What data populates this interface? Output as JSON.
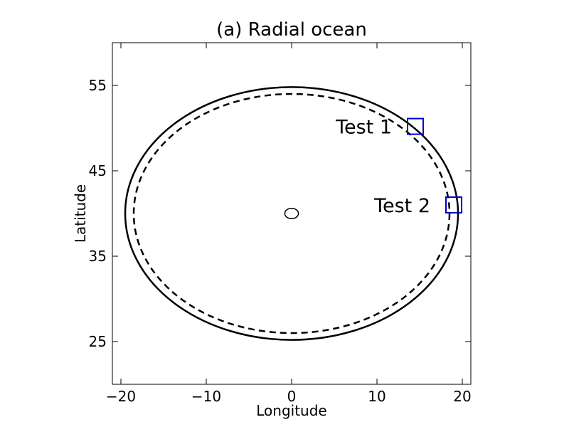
{
  "chart_data": {
    "type": "line",
    "title": "(a) Radial ocean",
    "xlabel": "Longitude",
    "ylabel": "Latitude",
    "xlim": [
      -21,
      21
    ],
    "ylim": [
      20,
      60
    ],
    "xticks": [
      -20,
      -10,
      0,
      10,
      20
    ],
    "xtick_labels": [
      "−20",
      "−10",
      "0",
      "10",
      "20"
    ],
    "yticks": [
      25,
      35,
      45,
      55
    ],
    "ytick_labels": [
      "25",
      "35",
      "45",
      "55"
    ],
    "grid": false,
    "series": [
      {
        "style": "solid",
        "color": "#000000",
        "center": [
          0,
          40
        ],
        "radius_lon": 19.5,
        "lat_top": 54.8,
        "lat_bottom": 25.2
      },
      {
        "style": "dashed",
        "color": "#000000",
        "center": [
          0,
          40
        ],
        "radius_lon": 18.5,
        "lat_top": 54.0,
        "lat_bottom": 26.0
      },
      {
        "style": "solid",
        "color": "#000000",
        "center": [
          0,
          40
        ],
        "radius_lon": 0.8,
        "lat_top": 40.6,
        "lat_bottom": 39.4
      }
    ],
    "markers": [
      {
        "label": "Test 1",
        "lon": 14.5,
        "lat": 50.2,
        "color": "#0000cc"
      },
      {
        "label": "Test 2",
        "lon": 19.0,
        "lat": 41.0,
        "color": "#0000cc"
      }
    ]
  }
}
